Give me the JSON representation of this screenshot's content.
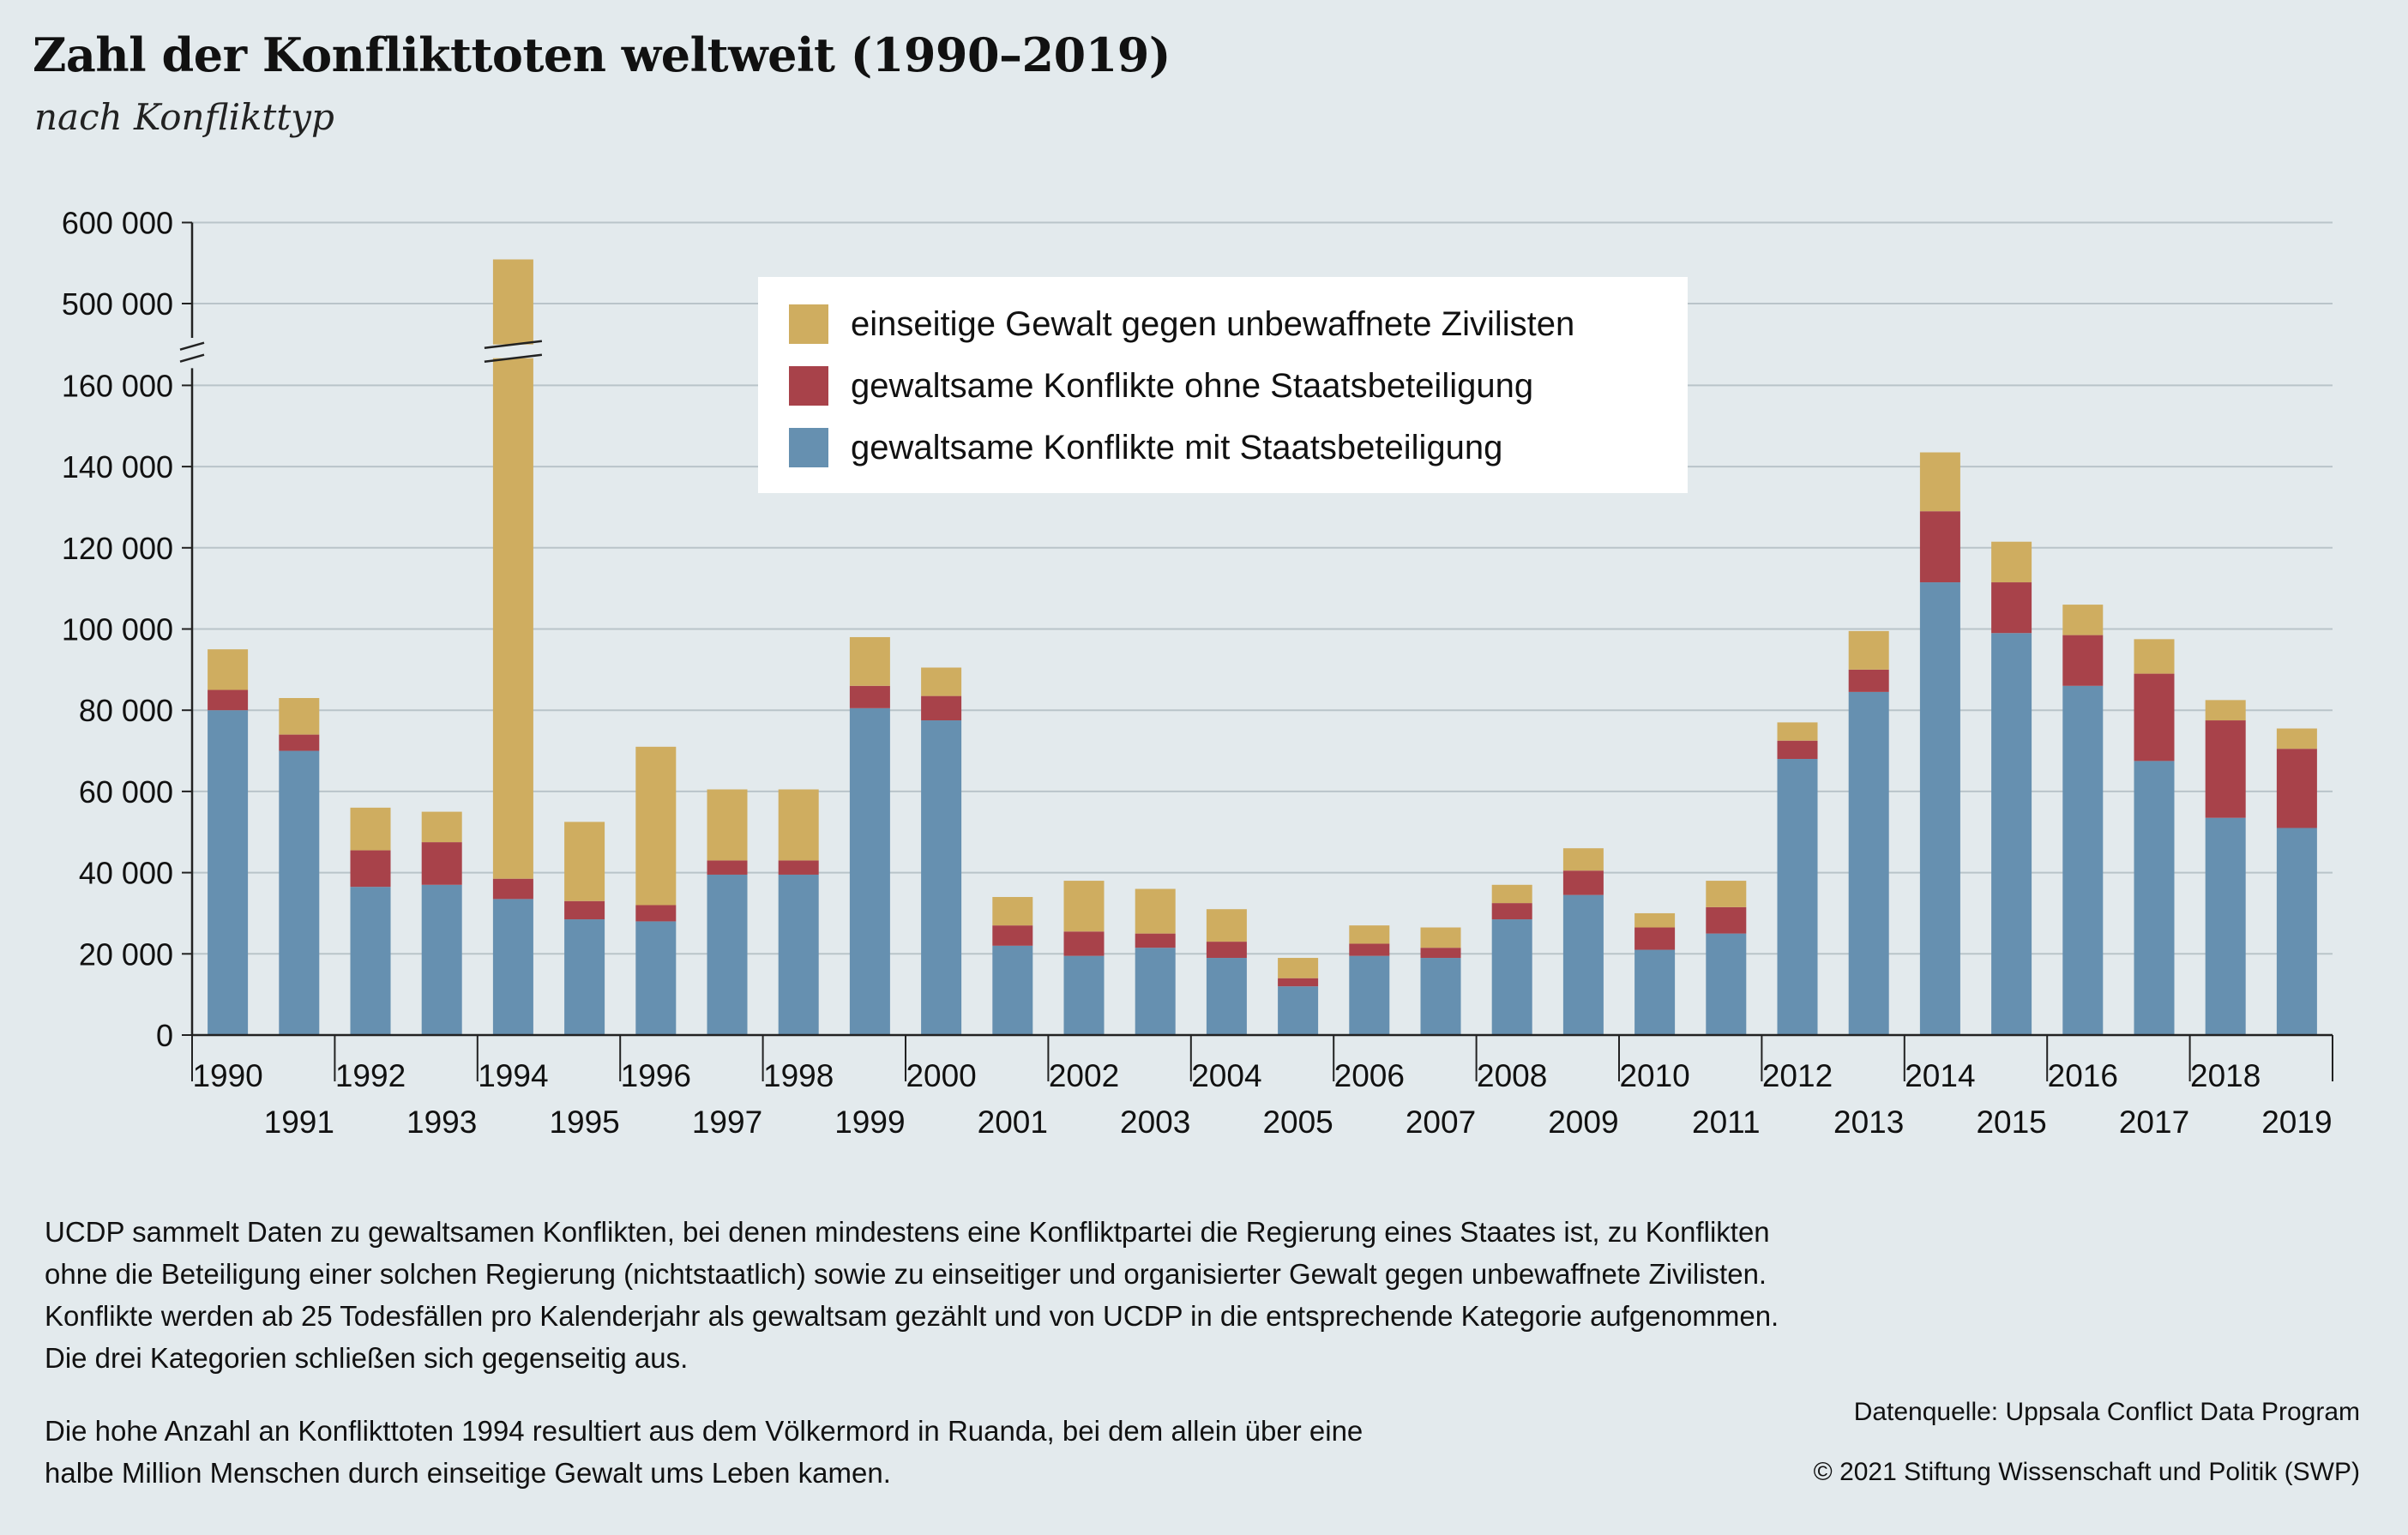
{
  "title": "Zahl der Konflikttoten weltweit (1990–2019)",
  "subtitle": "nach Konflikttyp",
  "chart_data": {
    "type": "bar",
    "stacked": true,
    "broken_axis": {
      "break_between": [
        160000,
        500000
      ]
    },
    "y_ticks": [
      "0",
      "20 000",
      "40 000",
      "60 000",
      "80 000",
      "100 000",
      "120 000",
      "140 000",
      "160 000",
      "500 000",
      "600 000"
    ],
    "ylim": [
      0,
      600000
    ],
    "grid": true,
    "legend_placement": "top-center",
    "categories": [
      "1990",
      "1991",
      "1992",
      "1993",
      "1994",
      "1995",
      "1996",
      "1997",
      "1998",
      "1999",
      "2000",
      "2001",
      "2002",
      "2003",
      "2004",
      "2005",
      "2006",
      "2007",
      "2008",
      "2009",
      "2010",
      "2011",
      "2012",
      "2013",
      "2014",
      "2015",
      "2016",
      "2017",
      "2018",
      "2019"
    ],
    "series": [
      {
        "name": "gewaltsame Konflikte mit Staatsbeteiligung",
        "color": "#6690b0",
        "values": [
          80000,
          70000,
          36500,
          37000,
          33500,
          28500,
          28000,
          39500,
          39500,
          80500,
          77500,
          22000,
          19500,
          21500,
          19000,
          12000,
          19500,
          19000,
          28500,
          34500,
          21000,
          25000,
          68000,
          84500,
          111500,
          99000,
          86000,
          67500,
          53500,
          51000
        ]
      },
      {
        "name": "gewaltsame Konflikte ohne Staatsbeteiligung",
        "color": "#a8424a",
        "values": [
          5000,
          4000,
          9000,
          10500,
          5000,
          4500,
          4000,
          3500,
          3500,
          5500,
          6000,
          5000,
          6000,
          3500,
          4000,
          2000,
          3000,
          2500,
          4000,
          6000,
          5500,
          6500,
          4500,
          5500,
          17500,
          12500,
          12500,
          21500,
          24000,
          19500
        ]
      },
      {
        "name": "einseitige Gewalt gegen unbewaffnete Zivilisten",
        "color": "#cfad60",
        "values": [
          10000,
          9000,
          10500,
          7500,
          516000,
          19500,
          39000,
          17500,
          17500,
          12000,
          7000,
          7000,
          12500,
          11000,
          8000,
          5000,
          4500,
          5000,
          4500,
          5500,
          3500,
          6500,
          4500,
          9500,
          14500,
          10000,
          7500,
          8500,
          5000,
          5000
        ]
      }
    ]
  },
  "legend": [
    {
      "label": "einseitige Gewalt gegen unbewaffnete Zivilisten",
      "color": "#cfad60"
    },
    {
      "label": "gewaltsame Konflikte ohne Staatsbeteiligung",
      "color": "#a8424a"
    },
    {
      "label": "gewaltsame Konflikte mit Staatsbeteiligung",
      "color": "#6690b0"
    }
  ],
  "notes": {
    "paragraph1": "UCDP sammelt Daten zu gewaltsamen Konflikten, bei denen mindestens eine Konfliktpartei die Regierung eines Staates ist, zu Konflikten ohne die Beteiligung einer solchen Regierung (nichtstaatlich) sowie zu einseitiger und organisierter Gewalt gegen unbewaffnete Zivilisten. Konflikte werden ab 25 Todesfällen pro Kalenderjahr als gewaltsam gezählt und von UCDP in die entsprechende Kategorie aufgenommen. Die drei Kategorien schließen sich gegenseitig aus.",
    "paragraph2": "Die hohe Anzahl an Konflikttoten 1994 resultiert aus dem Völkermord in Ruanda, bei dem allein über eine halbe Million Menschen durch einseitige Gewalt ums Leben kamen.",
    "source": "Datenquelle: Uppsala Conflict Data Program",
    "copyright": "© 2021 Stiftung Wissenschaft und Politik (SWP)"
  }
}
